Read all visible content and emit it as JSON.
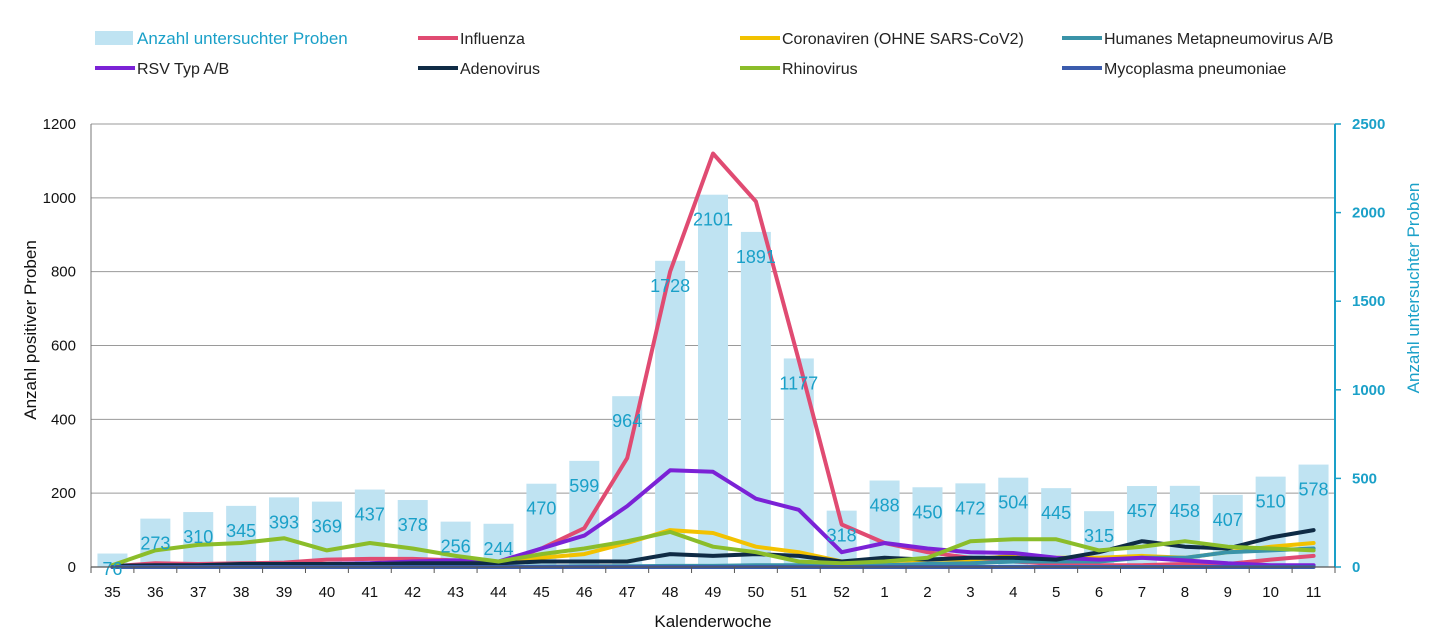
{
  "chart_data": {
    "type": "bar+line",
    "categories": [
      "35",
      "36",
      "37",
      "38",
      "39",
      "40",
      "41",
      "42",
      "43",
      "44",
      "45",
      "46",
      "47",
      "48",
      "49",
      "50",
      "51",
      "52",
      "1",
      "2",
      "3",
      "4",
      "5",
      "6",
      "7",
      "8",
      "9",
      "10",
      "11"
    ],
    "xlabel": "Kalenderwoche",
    "ylabel": "Anzahl positiver Proben",
    "ylabel_right": "Anzahl untersuchter Proben",
    "ylim": [
      0,
      1200
    ],
    "ylim_right": [
      0,
      2500
    ],
    "yticks": [
      "0",
      "200",
      "400",
      "600",
      "800",
      "1000",
      "1200"
    ],
    "yticks_right": [
      "0",
      "500",
      "1000",
      "1500",
      "2000",
      "2500"
    ],
    "grid": "horizontal",
    "legend_position": "top",
    "bars": {
      "name": "Anzahl untersuchter Proben",
      "color": "#bfe3f2",
      "label_color": "#1aa0c8",
      "values": [
        76,
        273,
        310,
        345,
        393,
        369,
        437,
        378,
        256,
        244,
        470,
        599,
        964,
        1728,
        2101,
        1891,
        1177,
        318,
        488,
        450,
        472,
        504,
        445,
        315,
        457,
        458,
        407,
        510,
        578
      ],
      "labels": [
        "76",
        "273",
        "310",
        "345",
        "393",
        "369",
        "437",
        "378",
        "256",
        "244",
        "470",
        "599",
        "964",
        "1728",
        "2101",
        "1891",
        "1177",
        "318",
        "488",
        "450",
        "472",
        "504",
        "445",
        "315",
        "457",
        "458",
        "407",
        "510",
        "578"
      ]
    },
    "series": [
      {
        "name": "Influenza",
        "color": "#e04b72",
        "values": [
          2,
          10,
          8,
          10,
          12,
          20,
          22,
          22,
          18,
          10,
          50,
          105,
          295,
          800,
          1120,
          990,
          560,
          115,
          65,
          40,
          25,
          15,
          8,
          5,
          5,
          8,
          8,
          20,
          30
        ]
      },
      {
        "name": "Coronaviren (OHNE SARS-CoV2)",
        "color": "#f2c200",
        "values": [
          2,
          3,
          3,
          3,
          5,
          5,
          6,
          8,
          8,
          10,
          25,
          35,
          65,
          100,
          92,
          55,
          40,
          15,
          15,
          20,
          20,
          30,
          25,
          25,
          30,
          25,
          40,
          55,
          65
        ]
      },
      {
        "name": "Humanes Metapneumovirus A/B",
        "color": "#3a93a8",
        "values": [
          0,
          0,
          1,
          1,
          1,
          1,
          1,
          1,
          1,
          1,
          1,
          2,
          2,
          3,
          3,
          5,
          5,
          5,
          5,
          8,
          10,
          15,
          15,
          15,
          25,
          25,
          40,
          45,
          50
        ]
      },
      {
        "name": "RSV Typ A/B",
        "color": "#7b22d6",
        "values": [
          0,
          2,
          3,
          5,
          6,
          8,
          10,
          15,
          18,
          15,
          50,
          85,
          165,
          262,
          258,
          185,
          155,
          40,
          65,
          50,
          40,
          38,
          25,
          20,
          25,
          18,
          10,
          5,
          5
        ]
      },
      {
        "name": "Adenovirus",
        "color": "#0f2b45",
        "values": [
          3,
          5,
          5,
          8,
          8,
          8,
          8,
          10,
          10,
          10,
          15,
          15,
          15,
          35,
          30,
          35,
          30,
          15,
          25,
          20,
          25,
          25,
          20,
          40,
          70,
          55,
          50,
          80,
          100
        ]
      },
      {
        "name": "Rhinovirus",
        "color": "#8bbd2a",
        "values": [
          5,
          45,
          60,
          65,
          78,
          45,
          65,
          50,
          30,
          15,
          35,
          50,
          70,
          95,
          55,
          40,
          15,
          10,
          15,
          25,
          70,
          75,
          75,
          45,
          55,
          70,
          55,
          50,
          45
        ]
      },
      {
        "name": "Mycoplasma pneumoniae",
        "color": "#3b5cad",
        "values": [
          0,
          0,
          0,
          0,
          0,
          0,
          0,
          0,
          0,
          0,
          0,
          0,
          0,
          0,
          0,
          0,
          0,
          0,
          0,
          0,
          0,
          0,
          0,
          0,
          0,
          0,
          0,
          0,
          0
        ]
      }
    ]
  }
}
